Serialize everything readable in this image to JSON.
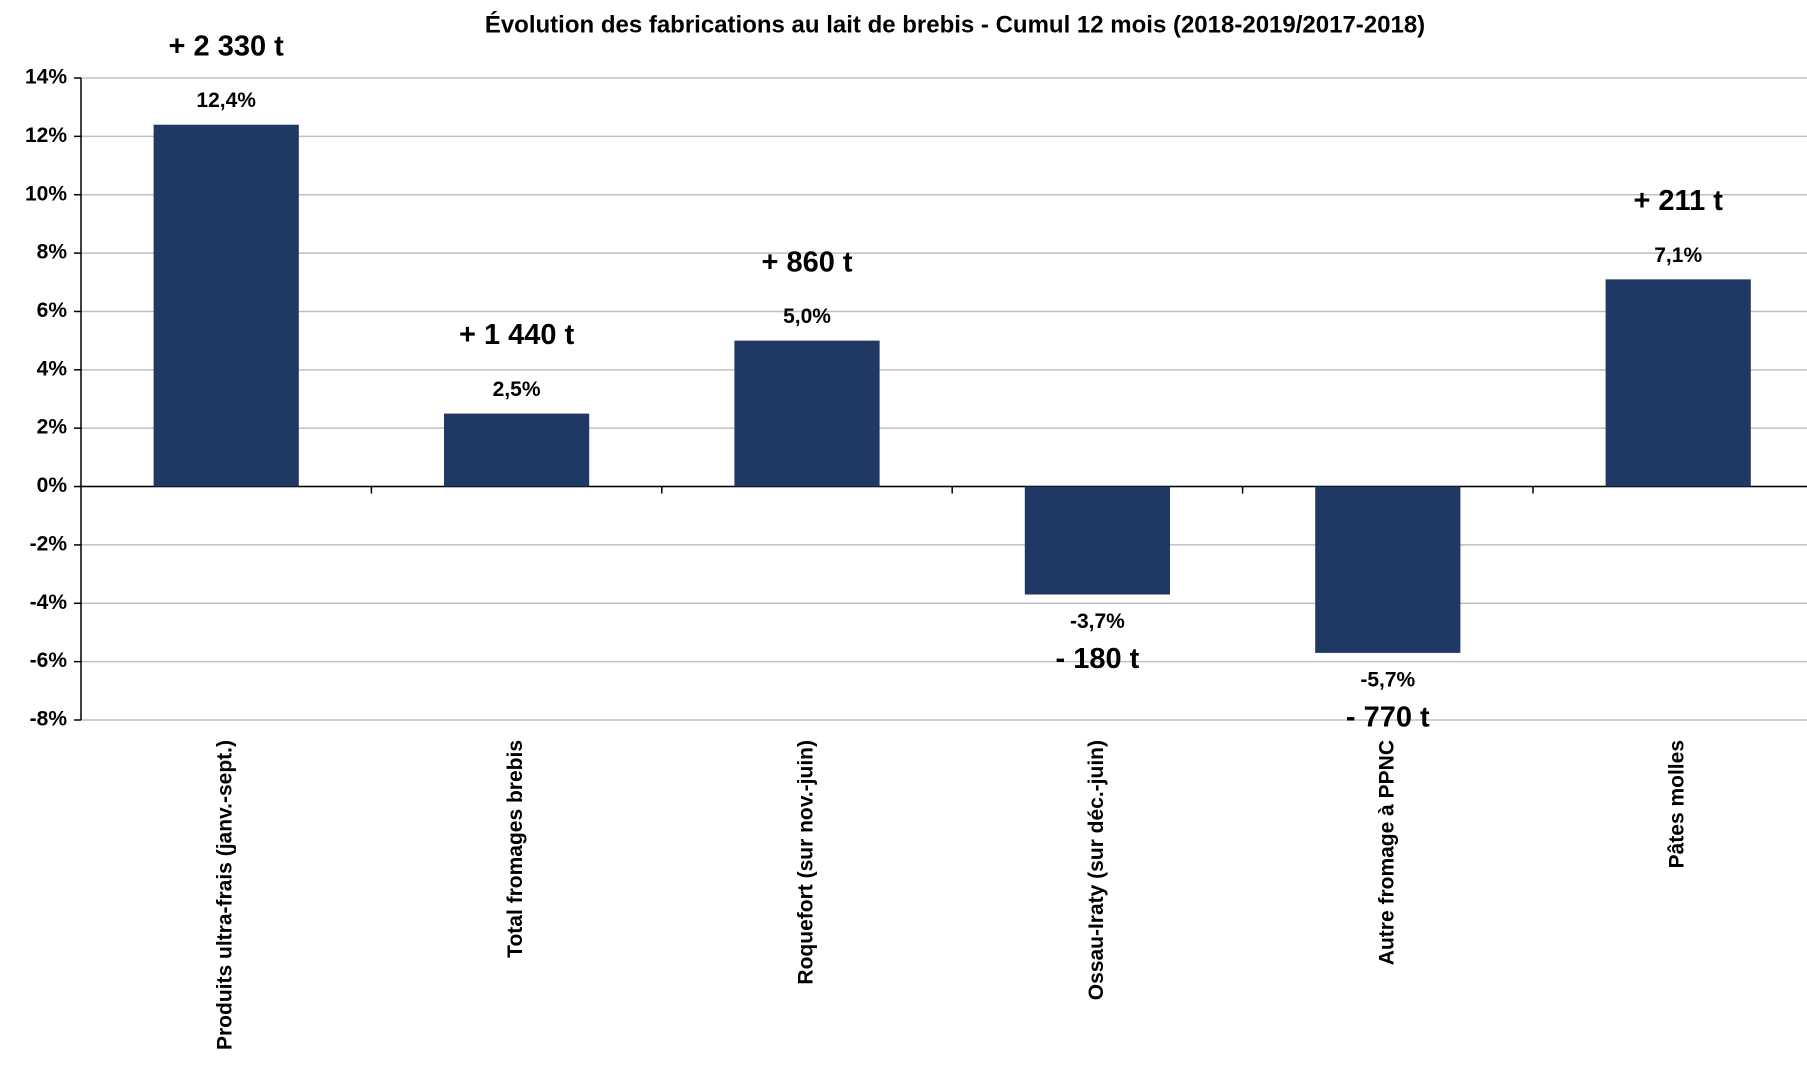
{
  "chart_data": {
    "type": "bar",
    "title": "Évolution des fabrications au lait de brebis - Cumul 12 mois (2018-2019/2017-2018)",
    "categories": [
      "Produits ultra-frais (janv.-sept.)",
      "Total fromages brebis",
      "Roquefort (sur nov.-juin)",
      "Ossau-Iraty (sur déc.-juin)",
      "Autre fromage à PPNC",
      "Pâtes molles"
    ],
    "values": [
      12.4,
      2.5,
      5.0,
      -3.7,
      -5.7,
      7.1
    ],
    "value_labels": [
      "12,4%",
      "2,5%",
      "5,0%",
      "-3,7%",
      "-5,7%",
      "7,1%"
    ],
    "annotations": [
      {
        "text": "+ 2 330 t",
        "color": "#203864"
      },
      {
        "text": "+ 1 440 t",
        "color": "#203864"
      },
      {
        "text": "+ 860 t",
        "color": "#203864"
      },
      {
        "text": "- 180 t",
        "color": "#2e75b6"
      },
      {
        "text": "- 770 t",
        "color": "#2e75b6"
      },
      {
        "text": "+ 211 t",
        "color": "#203864"
      }
    ],
    "color": "#203864",
    "ylim": [
      -8,
      14
    ],
    "yticks": [
      {
        "value": -8,
        "label": "-8%"
      },
      {
        "value": -6,
        "label": "-6%"
      },
      {
        "value": -4,
        "label": "-4%"
      },
      {
        "value": -2,
        "label": "-2%"
      },
      {
        "value": 0,
        "label": "0%"
      },
      {
        "value": 2,
        "label": "2%"
      },
      {
        "value": 4,
        "label": "4%"
      },
      {
        "value": 6,
        "label": "6%"
      },
      {
        "value": 8,
        "label": "8%"
      },
      {
        "value": 10,
        "label": "10%"
      },
      {
        "value": 12,
        "label": "12%"
      },
      {
        "value": 14,
        "label": "14%"
      }
    ],
    "grid": true
  }
}
